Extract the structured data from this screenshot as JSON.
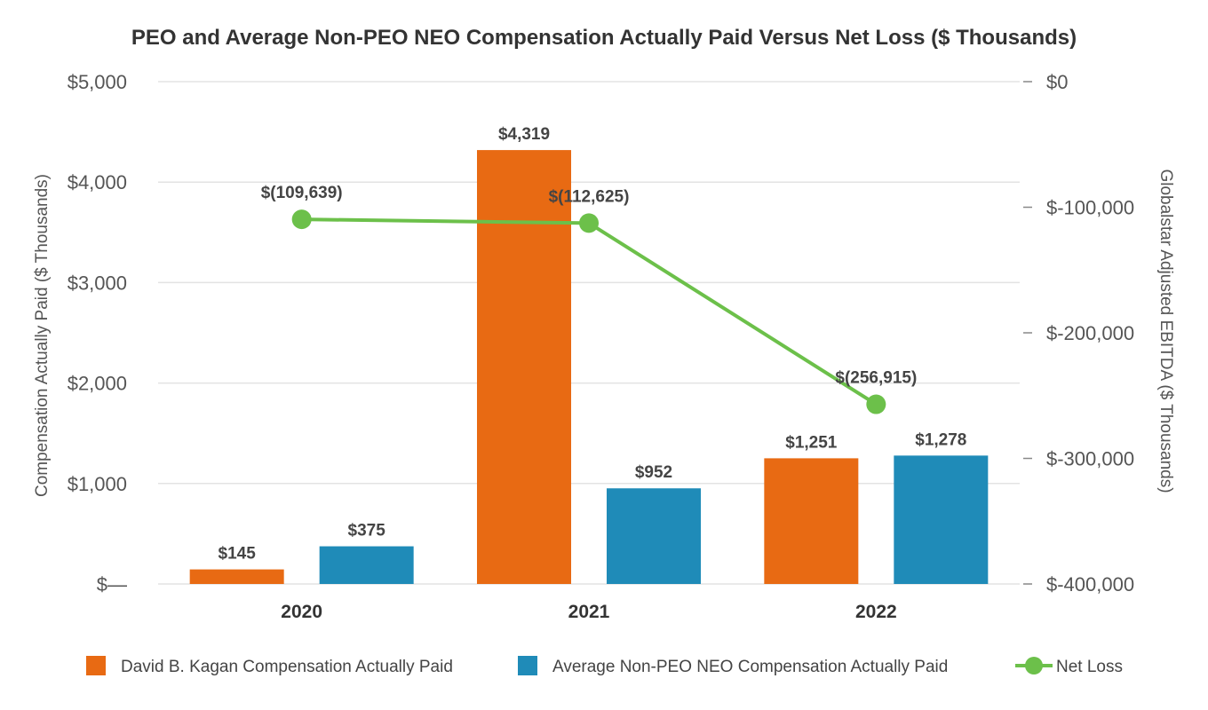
{
  "chart_data": {
    "type": "bar+line",
    "title": "PEO and Average Non-PEO NEO Compensation Actually Paid Versus Net Loss ($ Thousands)",
    "categories": [
      "2020",
      "2021",
      "2022"
    ],
    "ylabel_left": "Compensation Actually Paid ($ Thousands)",
    "ylabel_right": "Globalstar Adjusted EBITDA ($ Thousands)",
    "ylim_left": [
      0,
      5000
    ],
    "ylim_right": [
      -400000,
      0
    ],
    "left_ticks": [
      {
        "value": 0,
        "label": "$—"
      },
      {
        "value": 1000,
        "label": "$1,000"
      },
      {
        "value": 2000,
        "label": "$2,000"
      },
      {
        "value": 3000,
        "label": "$3,000"
      },
      {
        "value": 4000,
        "label": "$4,000"
      },
      {
        "value": 5000,
        "label": "$5,000"
      }
    ],
    "right_ticks": [
      {
        "value": 0,
        "label": "$0"
      },
      {
        "value": -100000,
        "label": "$-100,000"
      },
      {
        "value": -200000,
        "label": "$-200,000"
      },
      {
        "value": -300000,
        "label": "$-300,000"
      },
      {
        "value": -400000,
        "label": "$-400,000"
      }
    ],
    "series": [
      {
        "name": "David B. Kagan Compensation Actually Paid",
        "type": "bar",
        "axis": "left",
        "color": "#E86A13",
        "values": [
          145,
          4319,
          1251
        ],
        "labels": [
          "$145",
          "$4,319",
          "$1,251"
        ]
      },
      {
        "name": "Average Non-PEO NEO Compensation Actually Paid",
        "type": "bar",
        "axis": "left",
        "color": "#1F8BB8",
        "values": [
          375,
          952,
          1278
        ],
        "labels": [
          "$375",
          "$952",
          "$1,278"
        ]
      },
      {
        "name": "Net Loss",
        "type": "line",
        "axis": "right",
        "color": "#6CC04A",
        "values": [
          -109639,
          -112625,
          -256915
        ],
        "labels": [
          "$(109,639)",
          "$(112,625)",
          "$(256,915)"
        ]
      }
    ],
    "legend_position": "bottom"
  }
}
